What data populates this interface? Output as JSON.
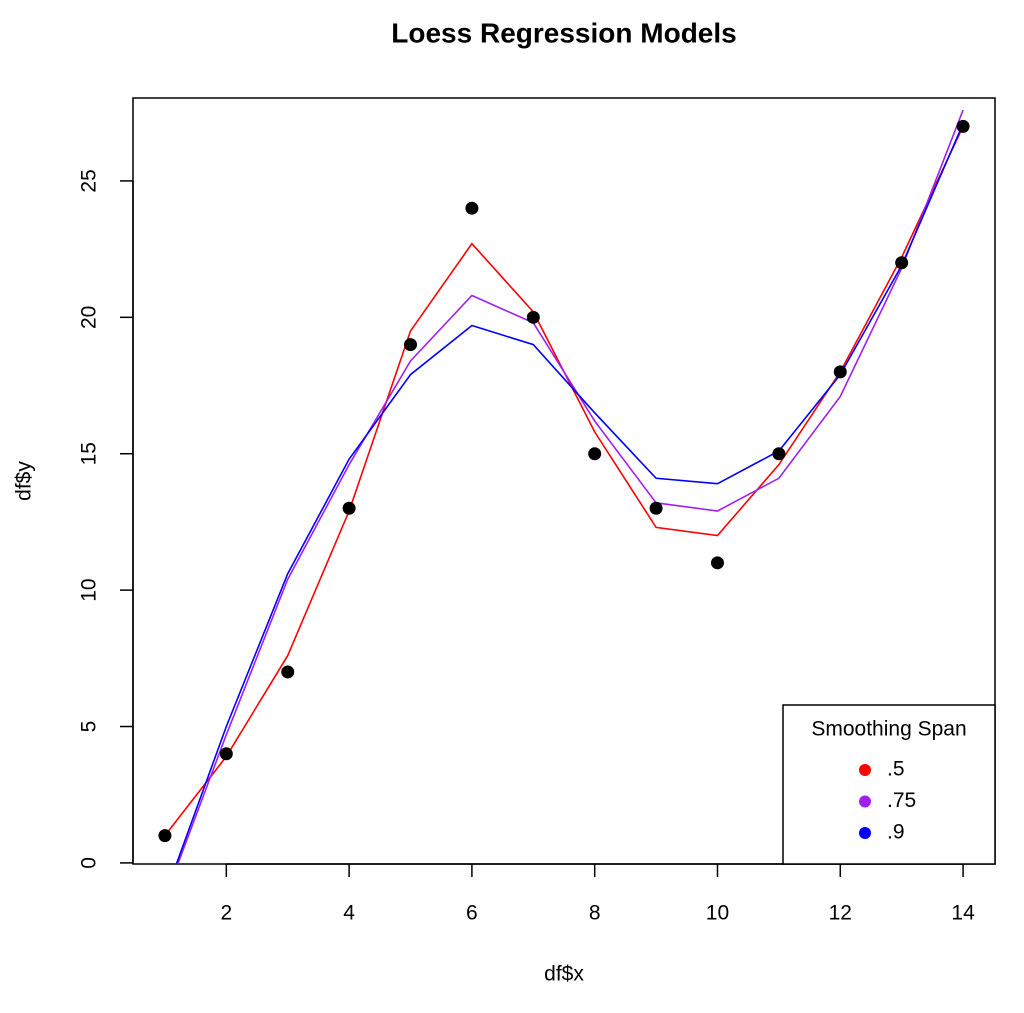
{
  "chart_data": {
    "type": "scatter",
    "title": "Loess Regression Models",
    "x_label": "df$x",
    "y_label": "df$y",
    "x": [
      1,
      2,
      3,
      4,
      5,
      6,
      7,
      8,
      9,
      10,
      11,
      12,
      13,
      14
    ],
    "points": {
      "color": "#000000",
      "values": [
        1,
        4,
        7,
        13,
        19,
        24,
        20,
        15,
        13,
        11,
        15,
        18,
        22,
        27
      ]
    },
    "series": [
      {
        "name": ".5",
        "color": "#ff0000",
        "values": [
          1,
          3.9,
          7.6,
          12.9,
          19.5,
          22.7,
          20.2,
          15.8,
          12.3,
          12.0,
          14.6,
          18.0,
          22.2,
          27.0
        ]
      },
      {
        "name": ".75",
        "color": "#a020f0",
        "values": [
          -1.3,
          4.7,
          10.4,
          14.6,
          18.4,
          20.8,
          19.8,
          16.2,
          13.2,
          12.9,
          14.1,
          17.1,
          21.8,
          27.6
        ]
      },
      {
        "name": ".9",
        "color": "#0000ff",
        "values": [
          -1.2,
          5.0,
          10.6,
          14.8,
          17.9,
          19.7,
          19.0,
          16.5,
          14.1,
          13.9,
          15.1,
          17.9,
          21.9,
          27.1
        ]
      }
    ],
    "legend_title": "Smoothing Span",
    "legend": "bottomright",
    "xlim": [
      0.48,
      14.52
    ],
    "ylim": [
      -0.04,
      28.04
    ],
    "xticks": [
      2,
      4,
      6,
      8,
      10,
      12,
      14
    ],
    "yticks": [
      0,
      5,
      10,
      15,
      20,
      25
    ]
  }
}
